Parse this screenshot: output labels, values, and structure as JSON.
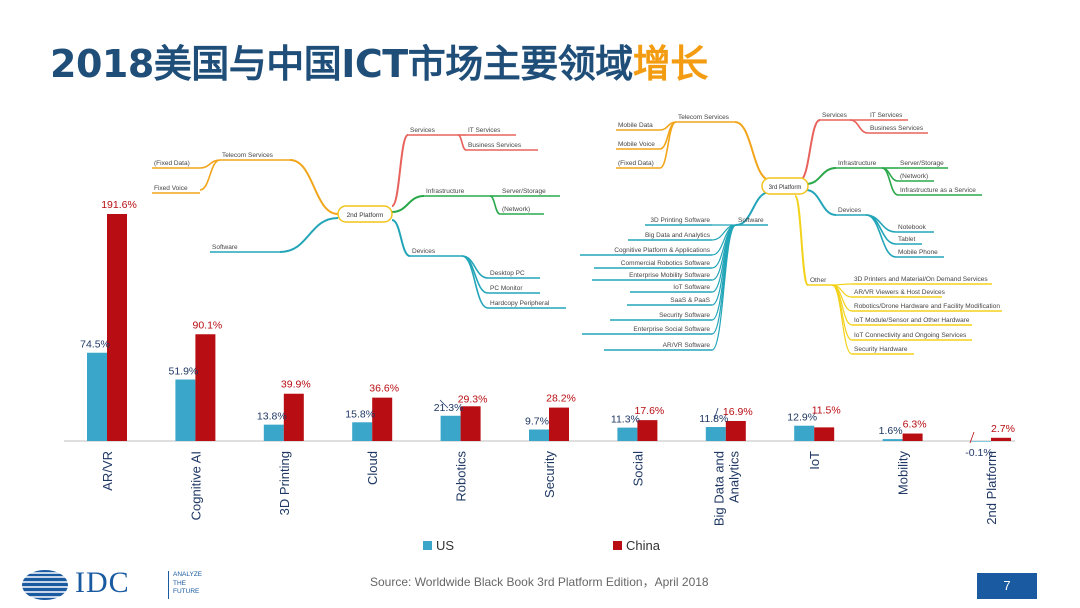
{
  "title": {
    "main": "2018美国与中国ICT市场主要领域",
    "highlight": "增长"
  },
  "colors": {
    "us": "#3aa6c9",
    "china": "#b80d12",
    "title": "#1f4e79",
    "highlight": "#f39c12",
    "footer_box": "#1a5aa0"
  },
  "chart_data": {
    "type": "bar",
    "categories": [
      "AR/VR",
      "Cognitive AI",
      "3D Printing",
      "Cloud",
      "Robotics",
      "Security",
      "Social",
      "Big Data and Analytics",
      "IoT",
      "Mobility",
      "2nd Platform"
    ],
    "category_lines": [
      [
        "AR/VR"
      ],
      [
        "Cognitive AI"
      ],
      [
        "3D Printing"
      ],
      [
        "Cloud"
      ],
      [
        "Robotics"
      ],
      [
        "Security"
      ],
      [
        "Social"
      ],
      [
        "Big Data and",
        "Analytics"
      ],
      [
        "IoT"
      ],
      [
        "Mobility"
      ],
      [
        "2nd Platform"
      ]
    ],
    "series": [
      {
        "name": "US",
        "values": [
          74.5,
          51.9,
          13.8,
          15.8,
          21.3,
          9.7,
          11.3,
          11.8,
          12.9,
          1.6,
          -0.1
        ],
        "labels": [
          "74.5%",
          "51.9%",
          "13.8%",
          "15.8%",
          "21.3%",
          "9.7%",
          "11.3%",
          "11.8%",
          "12.9%",
          "1.6%",
          "-0.1%"
        ]
      },
      {
        "name": "China",
        "values": [
          191.6,
          90.1,
          39.9,
          36.6,
          29.3,
          28.2,
          17.6,
          16.9,
          11.5,
          6.3,
          2.7
        ],
        "labels": [
          "191.6%",
          "90.1%",
          "39.9%",
          "36.6%",
          "29.3%",
          "28.2%",
          "17.6%",
          "16.9%",
          "11.5%",
          "6.3%",
          "2.7%"
        ]
      }
    ],
    "legend_position": "bottom",
    "grid": false
  },
  "mindmap": {
    "second_platform": {
      "center": "2nd Platform",
      "telecom": "Telecom Services",
      "fixed_data": "(Fixed Data)",
      "fixed_voice": "Fixed Voice",
      "software": "Software",
      "services": "Services",
      "it_services": "IT Services",
      "business_services": "Business Services",
      "infrastructure": "Infrastructure",
      "server_storage": "Server/Storage",
      "network": "(Network)",
      "devices": "Devices",
      "desktop_pc": "Desktop PC",
      "pc_monitor": "PC Monitor",
      "hardcopy": "Hardcopy Peripheral"
    },
    "third_platform": {
      "center": "3rd Platform",
      "telecom": "Telecom Services",
      "mobile_data": "Mobile Data",
      "mobile_voice": "Mobile Voice",
      "fixed_data": "(Fixed Data)",
      "software": "Software",
      "software_items": [
        "3D Printing Software",
        "Big Data and Analytics",
        "Cognitive Platform & Applications",
        "Commercial Robotics Software",
        "Enterprise Mobility Software",
        "IoT Software",
        "SaaS & PaaS",
        "Security Software",
        "Enterprise Social Software",
        "AR/VR Software"
      ],
      "services": "Services",
      "it_services": "IT Services",
      "business_services": "Business Services",
      "infrastructure": "Infrastructure",
      "server_storage": "Server/Storage",
      "network": "(Network)",
      "iaas": "Infrastructure as a Service",
      "devices": "Devices",
      "notebook": "Notebook",
      "tablet": "Tablet",
      "mobile_phone": "Mobile Phone",
      "other": "Other",
      "other_items": [
        "3D Printers and Material/On Demand Services",
        "AR/VR Viewers & Host Devices",
        "Robotics/Drone Hardware and Facility Modification",
        "IoT Module/Sensor and Other Hardware",
        "IoT Connectivity and Ongoing Services",
        "Security Hardware"
      ]
    }
  },
  "footer": {
    "source": "Source: Worldwide Black Book 3rd Platform Edition，April 2018",
    "page": "7",
    "logo": "IDC",
    "tagline": [
      "ANALYZE",
      "THE",
      "FUTURE"
    ]
  }
}
